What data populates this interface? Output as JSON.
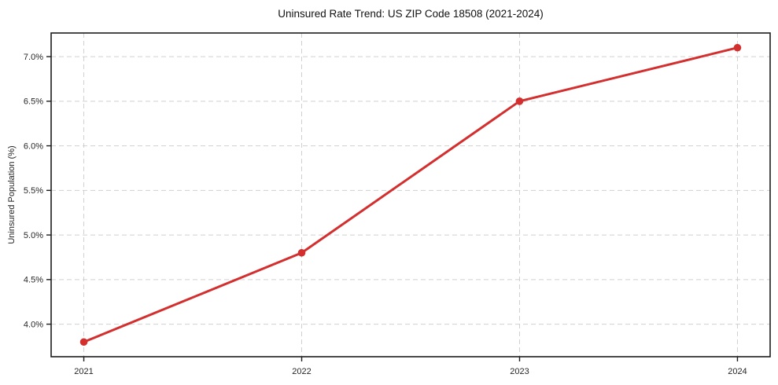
{
  "figure": {
    "background": "#ffffff"
  },
  "chart_data": {
    "type": "line",
    "title": "Uninsured Rate Trend: US ZIP Code 18508 (2021-2024)",
    "xlabel": "",
    "ylabel": "Uninsured Population (%)",
    "x": [
      2021,
      2022,
      2023,
      2024
    ],
    "series": [
      {
        "name": "uninsured-rate",
        "values": [
          3.8,
          4.8,
          6.5,
          7.1
        ],
        "color": "#d32f2f",
        "marker": "circle"
      }
    ],
    "x_tick_labels": [
      "2021",
      "2022",
      "2023",
      "2024"
    ],
    "y_ticks": [
      4.0,
      4.5,
      5.0,
      5.5,
      6.0,
      6.5,
      7.0
    ],
    "y_tick_labels": [
      "4.0%",
      "4.5%",
      "5.0%",
      "5.5%",
      "6.0%",
      "6.5%",
      "7.0%"
    ],
    "xlim": [
      2020.85,
      2024.15
    ],
    "ylim": [
      3.635,
      7.265
    ],
    "grid": true,
    "legend_position": "none",
    "grid_color": "#c8c8c8",
    "axis_color": "#1c1c1c",
    "text_color": "#262626"
  }
}
